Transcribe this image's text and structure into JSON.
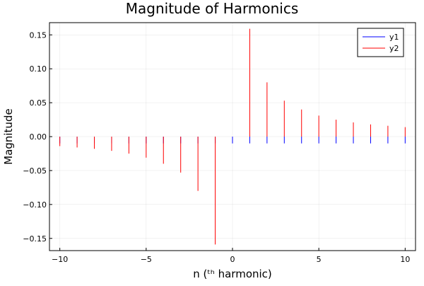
{
  "chart_data": {
    "type": "bar",
    "title": "Magnitude of Harmonics",
    "xlabel": "n (ᵗʰ harmonic)",
    "ylabel": "Magnitude",
    "xlim": [
      -10.6,
      10.6
    ],
    "ylim": [
      -0.168,
      0.168
    ],
    "xticks": [
      -10,
      -5,
      0,
      5,
      10
    ],
    "xtick_labels": [
      "−10",
      "−5",
      "0",
      "5",
      "10"
    ],
    "yticks": [
      -0.15,
      -0.1,
      -0.05,
      0.0,
      0.05,
      0.1,
      0.15
    ],
    "ytick_labels": [
      "−0.15",
      "−0.10",
      "−0.05",
      "0.00",
      "0.05",
      "0.10",
      "0.15"
    ],
    "grid": true,
    "legend": "top-right",
    "x": [
      -10,
      -9,
      -8,
      -7,
      -6,
      -5,
      -4,
      -3,
      -2,
      -1,
      0,
      1,
      2,
      3,
      4,
      5,
      6,
      7,
      8,
      9,
      10
    ],
    "series": [
      {
        "name": "y1",
        "color": "#0000ff",
        "values": [
          -0.01,
          -0.01,
          -0.01,
          -0.01,
          -0.01,
          -0.01,
          -0.01,
          -0.01,
          -0.01,
          -0.01,
          -0.01,
          -0.01,
          -0.01,
          -0.01,
          -0.01,
          -0.01,
          -0.01,
          -0.01,
          -0.01,
          -0.01,
          -0.01
        ]
      },
      {
        "name": "y2",
        "color": "#ff0000",
        "values": [
          -0.014,
          -0.016,
          -0.018,
          -0.021,
          -0.025,
          -0.031,
          -0.04,
          -0.053,
          -0.08,
          -0.159,
          0.0,
          0.159,
          0.08,
          0.053,
          0.04,
          0.031,
          0.025,
          0.021,
          0.018,
          0.016,
          0.014
        ]
      }
    ]
  }
}
